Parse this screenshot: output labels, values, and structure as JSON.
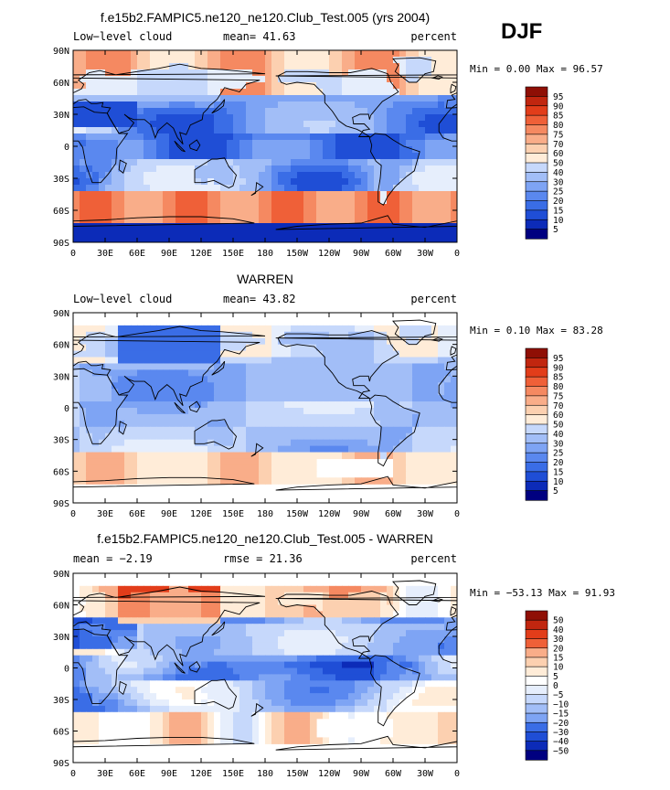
{
  "header": {
    "season": "DJF"
  },
  "colors": {
    "default_scale": [
      "#000080",
      "#0c2bb8",
      "#1f4ed6",
      "#3a6de6",
      "#5a88ef",
      "#7ea4f4",
      "#a2bef7",
      "#c6d8fb",
      "#e6eefc",
      "#ffecd8",
      "#fcd0b0",
      "#f9ad89",
      "#f58961",
      "#ef6038",
      "#e23d1a",
      "#c1260f",
      "#8f0f05"
    ],
    "diff_scale": [
      "#000080",
      "#0c2bb8",
      "#1f4ed6",
      "#3a6de6",
      "#5a88ef",
      "#7ea4f4",
      "#a2bef7",
      "#c6d8fb",
      "#e6eefc",
      "#ffffff",
      "#ffecd8",
      "#fcd0b0",
      "#f9ad89",
      "#f58961",
      "#ef6038",
      "#e23d1a",
      "#c1260f",
      "#8f0f05"
    ],
    "land_outline": "#000000",
    "missing": "#ffffff"
  },
  "chart_data": [
    {
      "type": "heatmap",
      "title": "f.e15b2.FAMPIC5.ne120_ne120.Club_Test.005 (yrs 2004)",
      "left_label": "Low−level cloud",
      "center_label": "mean=  41.63",
      "units": "percent",
      "stats": "Min =   0.00 Max =  96.57",
      "x_ticks": [
        "0",
        "30E",
        "60E",
        "90E",
        "120E",
        "150E",
        "180",
        "150W",
        "120W",
        "90W",
        "60W",
        "30W",
        "0"
      ],
      "y_ticks": [
        "90N",
        "60N",
        "30N",
        "0",
        "30S",
        "60S",
        "90S"
      ],
      "x_range": [
        0,
        360
      ],
      "y_range": [
        -90,
        90
      ],
      "levels": [
        "95",
        "90",
        "85",
        "80",
        "75",
        "70",
        "60",
        "50",
        "40",
        "30",
        "25",
        "20",
        "15",
        "10",
        "5"
      ],
      "colorbar": "default_scale",
      "field": "model"
    },
    {
      "type": "heatmap",
      "title": "WARREN",
      "left_label": "Low−level cloud",
      "center_label": "mean=  43.82",
      "units": "percent",
      "stats": "Min =   0.10 Max =  83.28",
      "x_ticks": [
        "0",
        "30E",
        "60E",
        "90E",
        "120E",
        "150E",
        "180",
        "150W",
        "120W",
        "90W",
        "60W",
        "30W",
        "0"
      ],
      "y_ticks": [
        "90N",
        "60N",
        "30N",
        "0",
        "30S",
        "60S",
        "90S"
      ],
      "x_range": [
        0,
        360
      ],
      "y_range": [
        -90,
        90
      ],
      "levels": [
        "95",
        "90",
        "85",
        "80",
        "75",
        "70",
        "60",
        "50",
        "40",
        "30",
        "25",
        "20",
        "15",
        "10",
        "5"
      ],
      "colorbar": "default_scale",
      "field": "obs"
    },
    {
      "type": "heatmap",
      "title": "f.e15b2.FAMPIC5.ne120_ne120.Club_Test.005 - WARREN",
      "left_label": "mean =  −2.19",
      "center_label": "rmse =  21.36",
      "units": "percent",
      "stats": "Min = −53.13 Max =  91.93",
      "x_ticks": [
        "0",
        "30E",
        "60E",
        "90E",
        "120E",
        "150E",
        "180",
        "150W",
        "120W",
        "90W",
        "60W",
        "30W",
        "0"
      ],
      "y_ticks": [
        "90N",
        "60N",
        "30N",
        "0",
        "30S",
        "60S",
        "90S"
      ],
      "x_range": [
        0,
        360
      ],
      "y_range": [
        -90,
        90
      ],
      "levels": [
        "50",
        "40",
        "30",
        "20",
        "15",
        "10",
        "5",
        "0",
        "−5",
        "−10",
        "−15",
        "−20",
        "−30",
        "−40",
        "−50"
      ],
      "colorbar": "diff_scale",
      "field": "diff"
    }
  ]
}
